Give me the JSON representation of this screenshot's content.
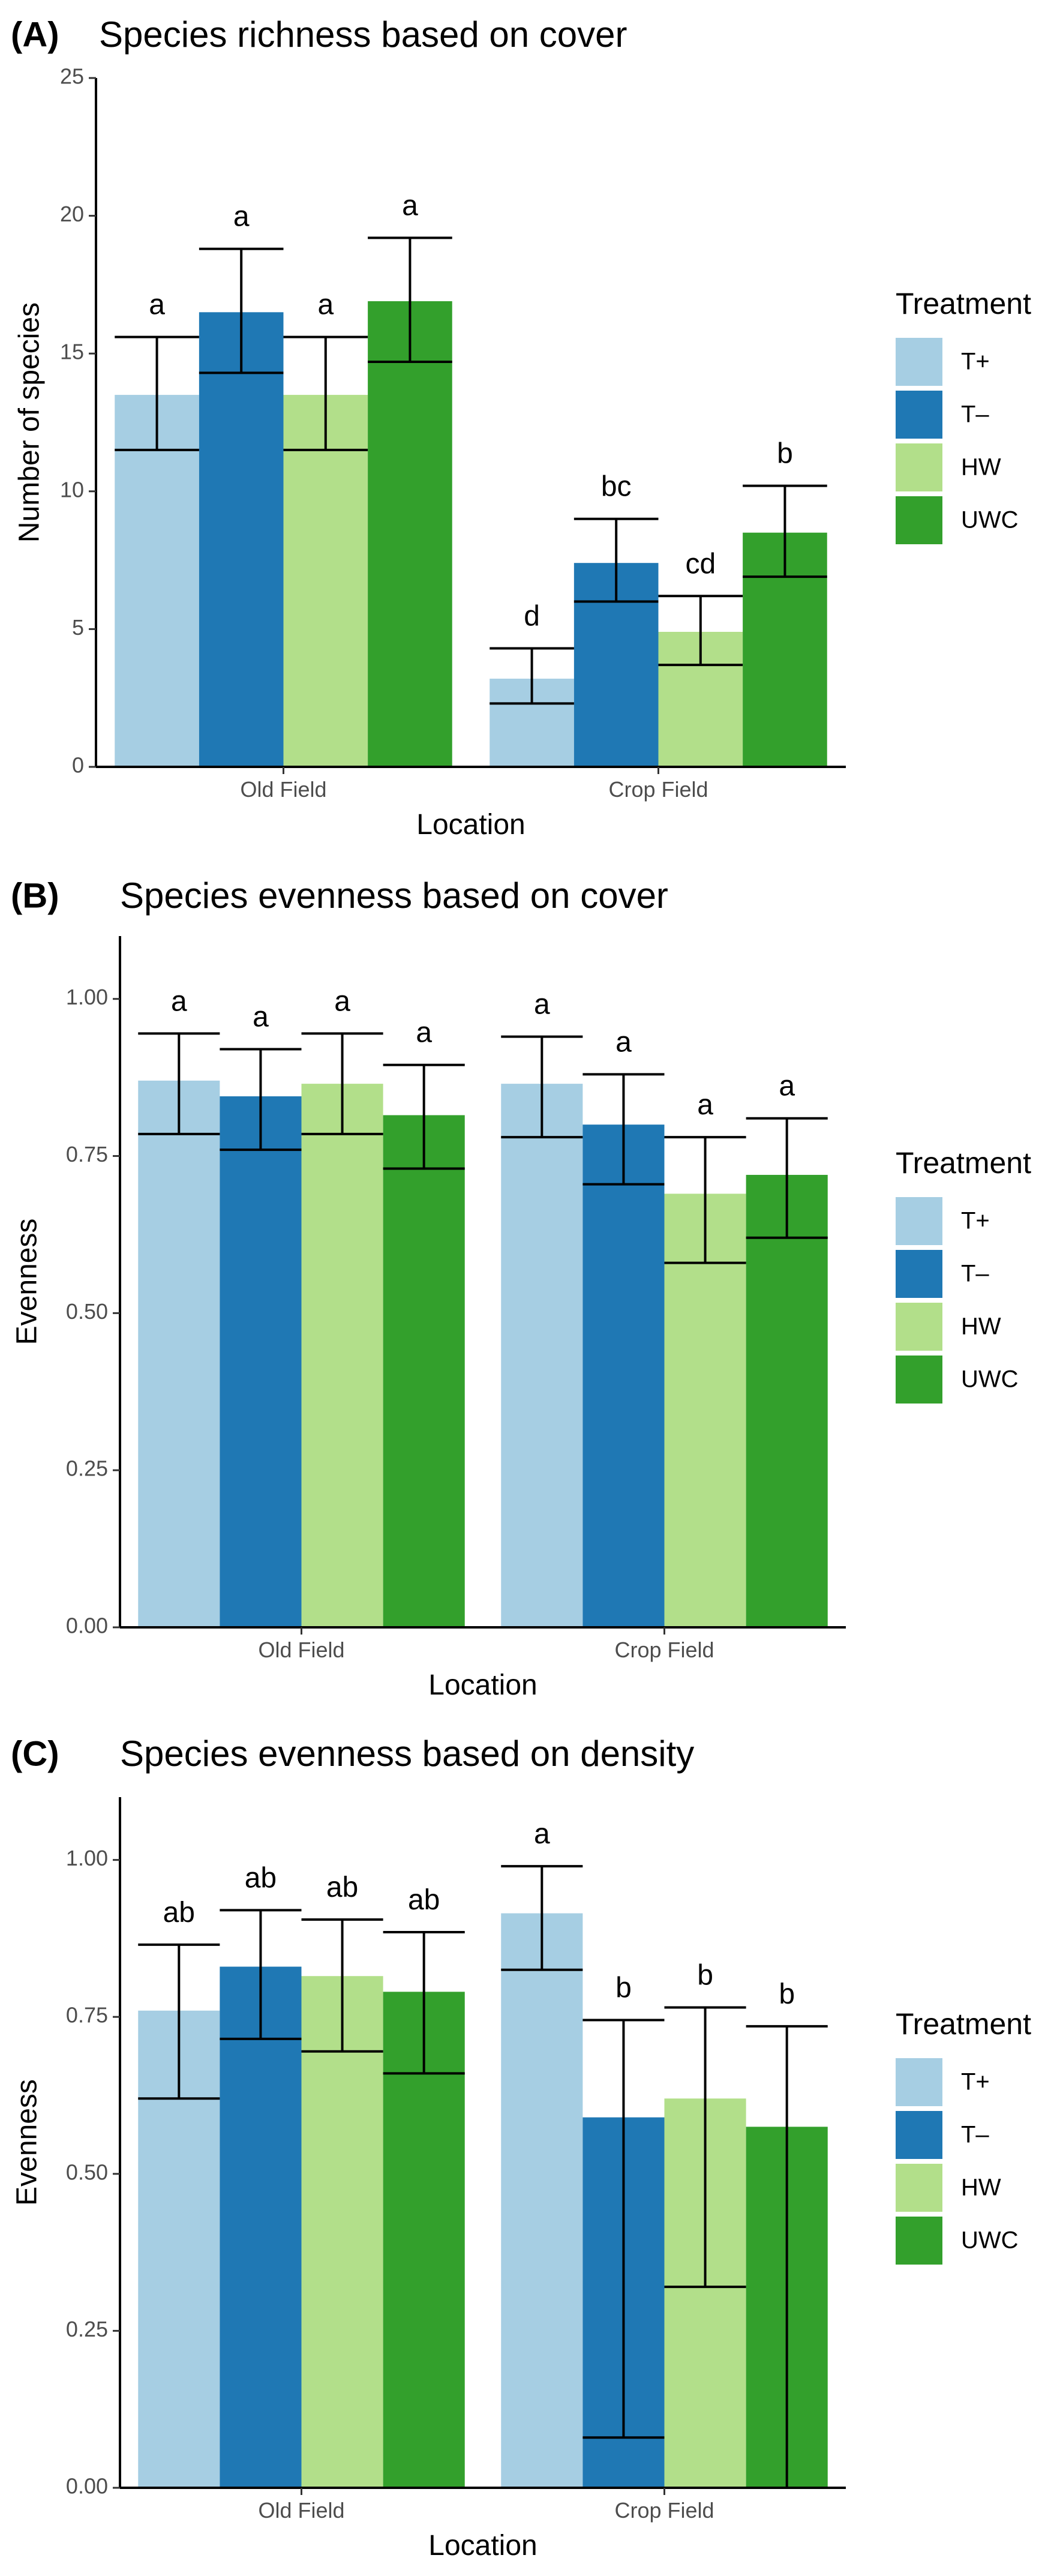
{
  "palette": {
    "T+": "#a6cee3",
    "T–": "#1f78b4",
    "HW": "#b2df8a",
    "UWC": "#33a02c"
  },
  "chart_data": [
    {
      "type": "bar",
      "panel": "(A)",
      "title": "Species richness based on cover",
      "xlabel": "Location",
      "ylabel": "Number of species",
      "categories": [
        "Old Field",
        "Crop Field"
      ],
      "ylim": [
        0,
        25
      ],
      "yticks": [
        0,
        5,
        10,
        15,
        20,
        25
      ],
      "ytick_labels": [
        "0",
        "5",
        "10",
        "15",
        "20",
        "25"
      ],
      "legend_title": "Treatment",
      "legend_position": "right",
      "series": [
        {
          "name": "T+",
          "values": [
            13.5,
            3.2
          ],
          "err_low": [
            11.5,
            2.3
          ],
          "err_high": [
            15.6,
            4.3
          ],
          "labels": [
            "a",
            "d"
          ]
        },
        {
          "name": "T–",
          "values": [
            16.5,
            7.4
          ],
          "err_low": [
            14.3,
            6.0
          ],
          "err_high": [
            18.8,
            9.0
          ],
          "labels": [
            "a",
            "bc"
          ]
        },
        {
          "name": "HW",
          "values": [
            13.5,
            4.9
          ],
          "err_low": [
            11.5,
            3.7
          ],
          "err_high": [
            15.6,
            6.2
          ],
          "labels": [
            "a",
            "cd"
          ]
        },
        {
          "name": "UWC",
          "values": [
            16.9,
            8.5
          ],
          "err_low": [
            14.7,
            6.9
          ],
          "err_high": [
            19.2,
            10.2
          ],
          "labels": [
            "a",
            "b"
          ]
        }
      ]
    },
    {
      "type": "bar",
      "panel": "(B)",
      "title": "Species evenness based on cover",
      "xlabel": "Location",
      "ylabel": "Evenness",
      "categories": [
        "Old Field",
        "Crop Field"
      ],
      "ylim": [
        0,
        1.1
      ],
      "yticks": [
        0,
        0.25,
        0.5,
        0.75,
        1.0
      ],
      "ytick_labels": [
        "0.00",
        "0.25",
        "0.50",
        "0.75",
        "1.00"
      ],
      "legend_title": "Treatment",
      "legend_position": "right",
      "series": [
        {
          "name": "T+",
          "values": [
            0.87,
            0.865
          ],
          "err_low": [
            0.785,
            0.78
          ],
          "err_high": [
            0.945,
            0.94
          ],
          "labels": [
            "a",
            "a"
          ]
        },
        {
          "name": "T–",
          "values": [
            0.845,
            0.8
          ],
          "err_low": [
            0.76,
            0.705
          ],
          "err_high": [
            0.92,
            0.88
          ],
          "labels": [
            "a",
            "a"
          ]
        },
        {
          "name": "HW",
          "values": [
            0.865,
            0.69
          ],
          "err_low": [
            0.785,
            0.58
          ],
          "err_high": [
            0.945,
            0.78
          ],
          "labels": [
            "a",
            "a"
          ]
        },
        {
          "name": "UWC",
          "values": [
            0.815,
            0.72
          ],
          "err_low": [
            0.73,
            0.62
          ],
          "err_high": [
            0.895,
            0.81
          ],
          "labels": [
            "a",
            "a"
          ]
        }
      ]
    },
    {
      "type": "bar",
      "panel": "(C)",
      "title": "Species evenness based on density",
      "xlabel": "Location",
      "ylabel": "Evenness",
      "categories": [
        "Old Field",
        "Crop Field"
      ],
      "ylim": [
        0,
        1.1
      ],
      "yticks": [
        0,
        0.25,
        0.5,
        0.75,
        1.0
      ],
      "ytick_labels": [
        "0.00",
        "0.25",
        "0.50",
        "0.75",
        "1.00"
      ],
      "legend_title": "Treatment",
      "legend_position": "right",
      "series": [
        {
          "name": "T+",
          "values": [
            0.76,
            0.915
          ],
          "err_low": [
            0.62,
            0.825
          ],
          "err_high": [
            0.865,
            0.99
          ],
          "labels": [
            "ab",
            "a"
          ]
        },
        {
          "name": "T–",
          "values": [
            0.83,
            0.59
          ],
          "err_low": [
            0.715,
            0.08
          ],
          "err_high": [
            0.92,
            0.745
          ],
          "labels": [
            "ab",
            "b"
          ]
        },
        {
          "name": "HW",
          "values": [
            0.815,
            0.62
          ],
          "err_low": [
            0.695,
            0.32
          ],
          "err_high": [
            0.905,
            0.765
          ],
          "labels": [
            "ab",
            "b"
          ]
        },
        {
          "name": "UWC",
          "values": [
            0.79,
            0.575
          ],
          "err_low": [
            0.66,
            0.0
          ],
          "err_high": [
            0.885,
            0.735
          ],
          "labels": [
            "ab",
            "b"
          ]
        }
      ]
    }
  ]
}
